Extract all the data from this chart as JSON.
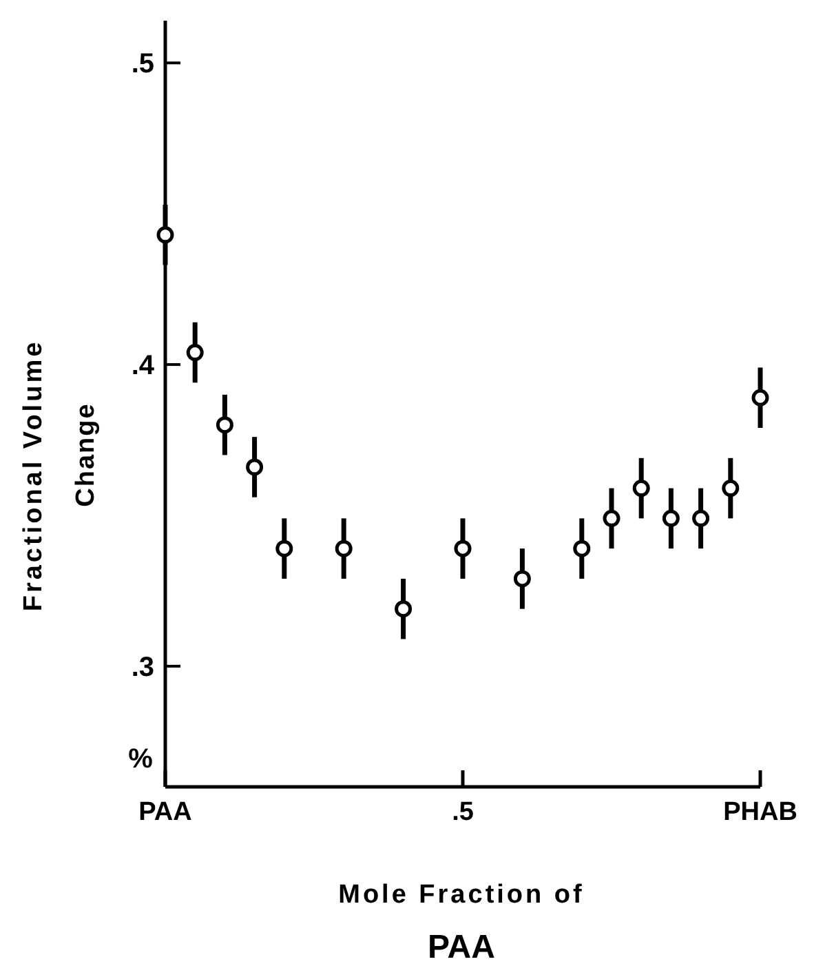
{
  "chart_data": {
    "type": "scatter",
    "xlabel": "Mole Fraction of\nPAA",
    "ylabel": "Fractional Volume\nChange",
    "annotations": [
      "%"
    ],
    "categories": [
      "PAA",
      null,
      null,
      null,
      null,
      null,
      null,
      null,
      null,
      null,
      ".5",
      null,
      null,
      null,
      null,
      null,
      null,
      null,
      null,
      null,
      "PHAB"
    ],
    "series": [
      {
        "color": "#000000",
        "values": [
          0.443,
          0.404,
          0.38,
          0.366,
          0.339,
          null,
          0.339,
          null,
          0.319,
          null,
          0.339,
          null,
          0.329,
          null,
          0.339,
          0.349,
          0.359,
          0.349,
          0.349,
          0.359,
          0.389
        ],
        "errors": [
          0.01,
          0.01,
          0.01,
          0.01,
          0.01,
          null,
          0.01,
          null,
          0.01,
          null,
          0.01,
          null,
          0.01,
          null,
          0.01,
          0.01,
          0.01,
          0.01,
          0.01,
          0.01,
          0.01
        ]
      }
    ],
    "ylim": [
      0.26,
      0.514
    ],
    "yticks": [
      {
        "value": 0.3,
        "label": ".3"
      },
      {
        "value": 0.4,
        "label": ".4"
      },
      {
        "value": 0.5,
        "label": ".5"
      }
    ],
    "marker": "circle",
    "grid": false
  }
}
